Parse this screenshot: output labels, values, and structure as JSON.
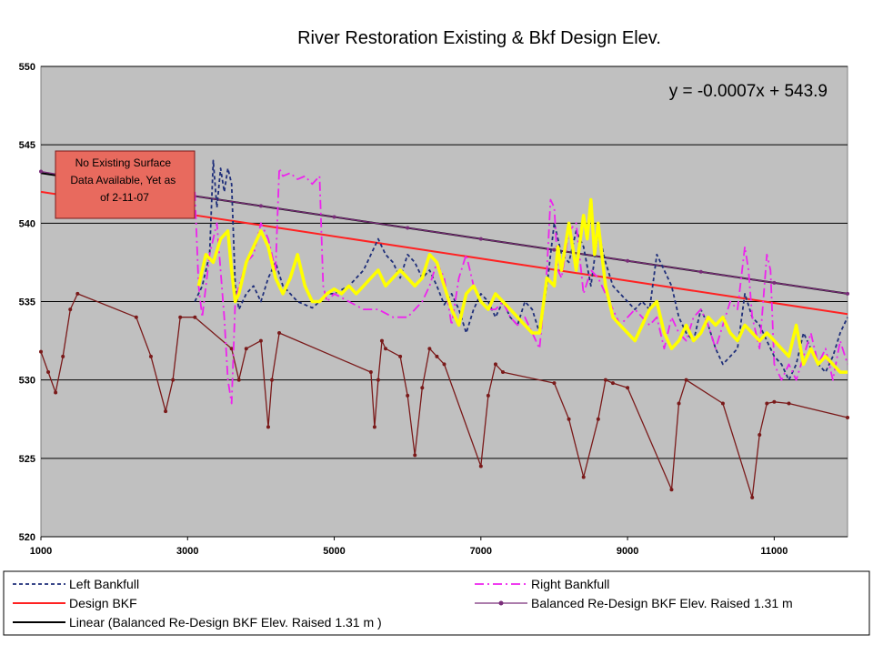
{
  "chart_data": {
    "type": "line",
    "title": "River Restoration Existing & Bkf Design Elev.",
    "xlabel": "",
    "ylabel": "",
    "xlim": [
      1000,
      12000
    ],
    "ylim": [
      520,
      550
    ],
    "x_ticks": [
      "1000",
      "3000",
      "5000",
      "7000",
      "9000",
      "11000"
    ],
    "y_ticks": [
      "520",
      "525",
      "530",
      "535",
      "540",
      "545",
      "550"
    ],
    "grid": "horizontal",
    "trendline_equation": "y = -0.0007x + 543.9",
    "annotation": "No Existing Surface Data Available, Yet as of 2-11-07",
    "legend_position": "bottom",
    "series": [
      {
        "name": "Left  Bankfull",
        "color": "#1f2f7a",
        "style": "dashed",
        "x": [
          3100,
          3200,
          3300,
          3350,
          3400,
          3450,
          3500,
          3550,
          3600,
          3650,
          3700,
          3800,
          3900,
          4000,
          4100,
          4200,
          4300,
          4400,
          4500,
          4600,
          4700,
          4800,
          4900,
          5000,
          5200,
          5400,
          5500,
          5600,
          5700,
          5800,
          5900,
          6000,
          6100,
          6200,
          6300,
          6400,
          6500,
          6600,
          6700,
          6800,
          6900,
          7000,
          7100,
          7200,
          7300,
          7400,
          7500,
          7600,
          7700,
          7800,
          7900,
          8000,
          8100,
          8200,
          8300,
          8400,
          8500,
          8600,
          8700,
          8800,
          8900,
          9000,
          9100,
          9200,
          9300,
          9400,
          9500,
          9600,
          9700,
          9800,
          9900,
          10000,
          10100,
          10200,
          10300,
          10400,
          10500,
          10600,
          10700,
          10800,
          10900,
          11000,
          11100,
          11200,
          11300,
          11400,
          11500,
          11600,
          11700,
          11800,
          11900,
          12000
        ],
        "values": [
          535.0,
          536.0,
          538.0,
          544.0,
          541.0,
          543.5,
          542.0,
          543.5,
          542.5,
          536.0,
          534.5,
          535.5,
          536.0,
          535.0,
          536.5,
          537.5,
          536.0,
          535.5,
          535.0,
          534.8,
          534.6,
          535.0,
          535.5,
          535.5,
          536.0,
          537.0,
          538.0,
          539.0,
          538.0,
          537.5,
          536.5,
          538.0,
          537.5,
          536.5,
          537.0,
          536.0,
          534.8,
          535.5,
          534.5,
          533.0,
          534.5,
          535.5,
          535.0,
          534.0,
          535.0,
          534.0,
          533.5,
          535.0,
          534.5,
          533.0,
          536.0,
          540.0,
          538.0,
          537.5,
          539.5,
          538.5,
          536.0,
          539.5,
          537.5,
          536.0,
          535.5,
          535.0,
          534.5,
          535.0,
          534.5,
          538.0,
          537.0,
          536.0,
          534.0,
          533.0,
          532.5,
          534.5,
          533.5,
          532.0,
          531.0,
          531.5,
          532.0,
          535.5,
          534.0,
          533.5,
          532.5,
          531.5,
          531.0,
          530.0,
          531.0,
          533.0,
          532.0,
          531.0,
          530.5,
          531.5,
          533.0,
          534.0
        ]
      },
      {
        "name": "Right Bankfull",
        "color": "#ee22ee",
        "style": "dashdot",
        "x": [
          3100,
          3150,
          3200,
          3300,
          3400,
          3500,
          3550,
          3600,
          3650,
          3700,
          3800,
          3900,
          4000,
          4100,
          4200,
          4250,
          4300,
          4400,
          4500,
          4600,
          4700,
          4800,
          4850,
          4900,
          5000,
          5200,
          5400,
          5600,
          5800,
          6000,
          6200,
          6300,
          6400,
          6500,
          6600,
          6700,
          6800,
          6900,
          7000,
          7100,
          7200,
          7300,
          7400,
          7500,
          7600,
          7700,
          7800,
          7900,
          7950,
          8000,
          8050,
          8100,
          8200,
          8300,
          8400,
          8500,
          8600,
          8700,
          8800,
          8900,
          9000,
          9100,
          9200,
          9300,
          9400,
          9500,
          9600,
          9700,
          9800,
          9900,
          10000,
          10100,
          10200,
          10300,
          10400,
          10500,
          10600,
          10650,
          10700,
          10800,
          10900,
          10950,
          11000,
          11100,
          11200,
          11300,
          11400,
          11500,
          11600,
          11700,
          11800,
          11900,
          12000
        ],
        "values": [
          542.0,
          536.0,
          534.0,
          538.0,
          540.0,
          534.0,
          530.0,
          528.5,
          535.0,
          536.0,
          537.5,
          538.0,
          540.0,
          539.0,
          537.0,
          543.5,
          543.0,
          543.2,
          542.8,
          543.0,
          542.5,
          543.0,
          536.0,
          535.0,
          535.5,
          535.0,
          534.5,
          534.5,
          534.0,
          534.0,
          535.0,
          536.0,
          537.5,
          536.5,
          533.5,
          536.5,
          538.0,
          536.0,
          535.0,
          534.5,
          534.5,
          535.0,
          534.0,
          533.5,
          534.0,
          533.0,
          532.0,
          537.0,
          541.5,
          541.0,
          537.0,
          536.5,
          539.5,
          540.0,
          535.5,
          537.0,
          536.5,
          535.5,
          534.5,
          533.5,
          534.0,
          534.5,
          534.0,
          533.5,
          534.0,
          532.0,
          534.0,
          533.0,
          532.5,
          534.0,
          534.5,
          533.5,
          532.0,
          533.5,
          535.0,
          534.5,
          538.5,
          537.0,
          534.0,
          532.0,
          538.0,
          537.0,
          531.0,
          530.0,
          531.0,
          530.0,
          531.5,
          533.0,
          531.0,
          532.0,
          530.0,
          532.5,
          531.0
        ]
      },
      {
        "name": "Design BKF",
        "color": "#ff2222",
        "style": "solid",
        "x": [
          1000,
          12000
        ],
        "values": [
          542.0,
          534.2
        ]
      },
      {
        "name": "Balanced Re-Design BKF Elev. Raised 1.31 m",
        "color": "#7a2d7a",
        "style": "solid-markers",
        "x": [
          1000,
          2000,
          3000,
          4000,
          5000,
          6000,
          7000,
          8000,
          9000,
          10000,
          11000,
          12000
        ],
        "values": [
          543.3,
          542.5,
          541.8,
          541.1,
          540.4,
          539.7,
          539.0,
          538.3,
          537.6,
          536.9,
          536.2,
          535.5
        ]
      },
      {
        "name": "Linear (Balanced Re-Design BKF Elev. Raised 1.31 m )",
        "color": "#000000",
        "style": "solid",
        "x": [
          1000,
          12000
        ],
        "values": [
          543.2,
          535.5
        ]
      },
      {
        "name": "",
        "color": "#ffff00",
        "style": "thick-solid",
        "x": [
          3150,
          3250,
          3350,
          3450,
          3550,
          3600,
          3650,
          3700,
          3800,
          3900,
          4000,
          4100,
          4200,
          4300,
          4400,
          4500,
          4600,
          4700,
          4800,
          4900,
          5000,
          5100,
          5200,
          5300,
          5400,
          5500,
          5600,
          5700,
          5800,
          5900,
          6000,
          6100,
          6200,
          6300,
          6400,
          6500,
          6600,
          6700,
          6800,
          6900,
          7000,
          7100,
          7200,
          7300,
          7400,
          7500,
          7600,
          7700,
          7800,
          7900,
          8000,
          8050,
          8100,
          8200,
          8300,
          8400,
          8450,
          8500,
          8550,
          8600,
          8700,
          8800,
          8900,
          9000,
          9100,
          9200,
          9300,
          9400,
          9500,
          9600,
          9700,
          9800,
          9900,
          10000,
          10100,
          10200,
          10300,
          10400,
          10500,
          10600,
          10700,
          10800,
          10900,
          11000,
          11100,
          11200,
          11300,
          11400,
          11500,
          11600,
          11700,
          11800,
          11900,
          12000
        ],
        "values": [
          536.0,
          538.0,
          537.5,
          539.0,
          539.5,
          537.0,
          535.0,
          535.5,
          537.5,
          538.5,
          539.5,
          538.5,
          536.5,
          535.5,
          536.5,
          538.0,
          536.0,
          535.0,
          535.0,
          535.5,
          535.8,
          535.5,
          536.0,
          535.5,
          536.0,
          536.5,
          537.0,
          536.0,
          536.5,
          537.0,
          536.5,
          536.0,
          536.5,
          538.0,
          537.5,
          536.0,
          534.5,
          533.5,
          535.5,
          536.0,
          535.0,
          534.5,
          535.5,
          535.0,
          534.5,
          534.0,
          533.5,
          533.0,
          533.0,
          536.5,
          536.0,
          538.5,
          537.0,
          540.0,
          537.0,
          540.5,
          539.0,
          541.5,
          538.0,
          540.0,
          536.0,
          534.0,
          533.5,
          533.0,
          532.5,
          533.5,
          534.5,
          535.0,
          533.0,
          532.0,
          532.5,
          533.5,
          532.5,
          533.0,
          534.0,
          533.5,
          534.0,
          533.0,
          532.5,
          533.5,
          533.0,
          532.5,
          533.0,
          532.5,
          532.0,
          531.5,
          533.5,
          531.0,
          532.0,
          531.0,
          531.5,
          531.0,
          530.5,
          530.5
        ]
      },
      {
        "name": "",
        "color": "#7a1a1a",
        "style": "solid-markers",
        "x": [
          1000,
          1100,
          1200,
          1300,
          1400,
          1500,
          2300,
          2500,
          2700,
          2800,
          2900,
          3100,
          3600,
          3700,
          3800,
          4000,
          4100,
          4150,
          4250,
          5500,
          5550,
          5600,
          5650,
          5700,
          5900,
          6000,
          6100,
          6200,
          6300,
          6400,
          6500,
          7000,
          7100,
          7200,
          7300,
          8000,
          8200,
          8400,
          8600,
          8700,
          8800,
          9000,
          9600,
          9700,
          9800,
          10300,
          10700,
          10800,
          10900,
          11000,
          11200,
          12000
        ],
        "values": [
          531.8,
          530.5,
          529.2,
          531.5,
          534.5,
          535.5,
          534.0,
          531.5,
          528.0,
          530.0,
          534.0,
          534.0,
          532.0,
          530.0,
          532.0,
          532.5,
          527.0,
          530.0,
          533.0,
          530.5,
          527.0,
          530.0,
          532.5,
          532.0,
          531.5,
          529.0,
          525.2,
          529.5,
          532.0,
          531.5,
          531.0,
          524.5,
          529.0,
          531.0,
          530.5,
          529.8,
          527.5,
          523.8,
          527.5,
          530.0,
          529.8,
          529.5,
          523.0,
          528.5,
          530.0,
          528.5,
          522.5,
          526.5,
          528.5,
          528.6,
          528.5,
          527.6
        ]
      }
    ]
  },
  "legend": {
    "items": [
      {
        "label": "Left  Bankfull",
        "series": 0
      },
      {
        "label": "Right Bankfull",
        "series": 1
      },
      {
        "label": "Design BKF",
        "series": 2
      },
      {
        "label": "Balanced Re-Design BKF Elev. Raised 1.31 m",
        "series": 3
      },
      {
        "label": "Linear (Balanced Re-Design BKF Elev. Raised 1.31 m )",
        "series": 4
      }
    ]
  }
}
